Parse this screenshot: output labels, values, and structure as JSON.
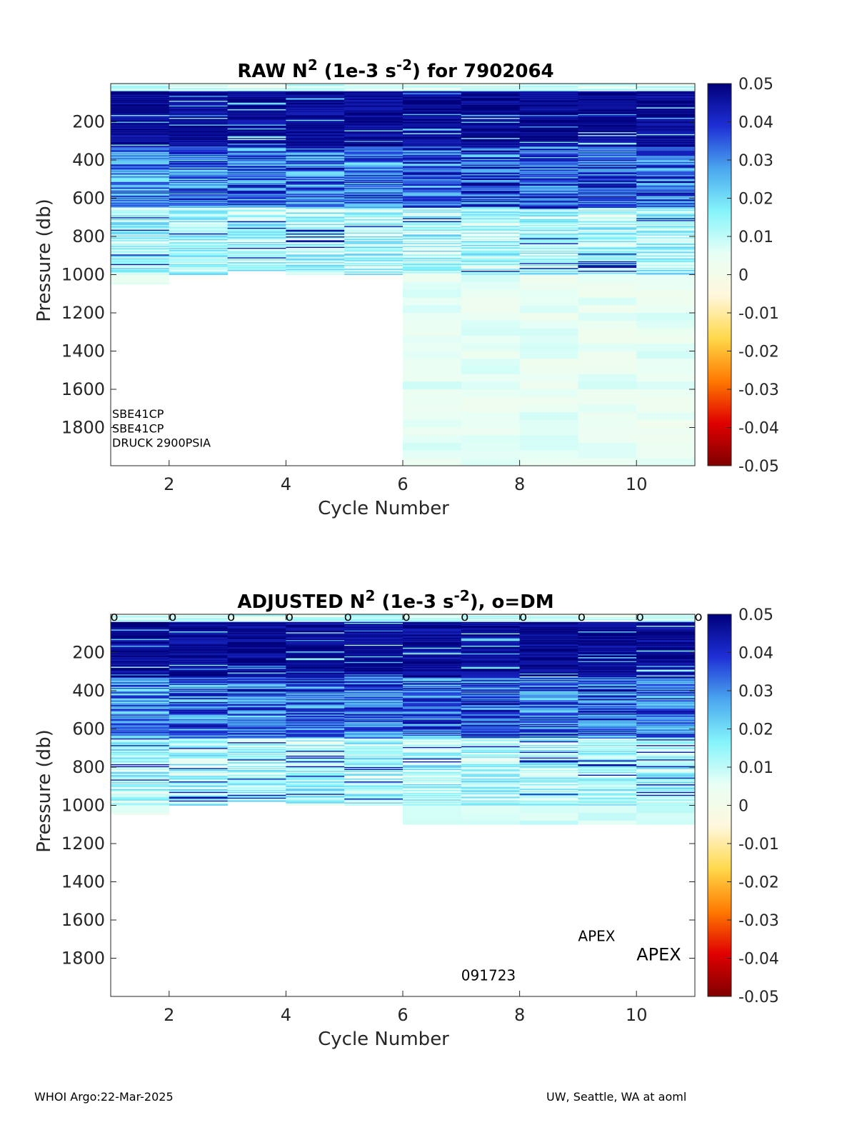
{
  "figure": {
    "footer_left": "WHOI Argo:22-Mar-2025",
    "footer_right": "UW, Seattle, WA at aoml"
  },
  "colormap": {
    "stops": [
      "#7f0000",
      "#e00000",
      "#ff7a00",
      "#ffd84a",
      "#fff7dc",
      "#e8fff6",
      "#84f4fb",
      "#4aa6ee",
      "#1e2fd6",
      "#00007a"
    ],
    "ticks": [
      "0.05",
      "0.04",
      "0.03",
      "0.02",
      "0.01",
      "0",
      "-0.01",
      "-0.02",
      "-0.03",
      "-0.04",
      "-0.05"
    ],
    "clim": [
      -0.05,
      0.05
    ]
  },
  "chart_data": [
    {
      "type": "heatmap",
      "title_main": "RAW N",
      "title_sup": "2",
      "title_mid": " (1e-3 s",
      "title_sup2": "-2",
      "title_end": ") for 7902064",
      "xlabel": "Cycle Number",
      "ylabel": "Pressure (db)",
      "xlim": [
        1,
        11
      ],
      "ylim": [
        2000,
        0
      ],
      "xticks": [
        "2",
        "4",
        "6",
        "8",
        "10"
      ],
      "yticks": [
        "200",
        "400",
        "600",
        "800",
        "1000",
        "1200",
        "1400",
        "1600",
        "1800"
      ],
      "annotations": [
        "SBE41CP",
        "SBE41CP",
        "DRUCK 2900PSIA"
      ],
      "cycles": [
        {
          "cycle": 1,
          "max_pressure": 1050,
          "value_upper": 0.026,
          "value_deep": 0.004
        },
        {
          "cycle": 2,
          "max_pressure": 1000,
          "value_upper": 0.03,
          "value_deep": 0.004
        },
        {
          "cycle": 3,
          "max_pressure": 980,
          "value_upper": 0.03,
          "value_deep": 0.004
        },
        {
          "cycle": 4,
          "max_pressure": 1000,
          "value_upper": 0.03,
          "value_deep": 0.004
        },
        {
          "cycle": 5,
          "max_pressure": 1000,
          "value_upper": 0.03,
          "value_deep": 0.004
        },
        {
          "cycle": 6,
          "max_pressure": 2000,
          "value_upper": 0.03,
          "value_deep": 0.006
        },
        {
          "cycle": 7,
          "max_pressure": 2000,
          "value_upper": 0.032,
          "value_deep": 0.005
        },
        {
          "cycle": 8,
          "max_pressure": 2000,
          "value_upper": 0.03,
          "value_deep": 0.005
        },
        {
          "cycle": 9,
          "max_pressure": 2000,
          "value_upper": 0.032,
          "value_deep": 0.005
        },
        {
          "cycle": 10,
          "max_pressure": 2000,
          "value_upper": 0.03,
          "value_deep": 0.005
        }
      ]
    },
    {
      "type": "heatmap",
      "title_main": "ADJUSTED N",
      "title_sup": "2",
      "title_mid": " (1e-3 s",
      "title_sup2": "-2",
      "title_end": "), o=DM",
      "xlabel": "Cycle Number",
      "ylabel": "Pressure (db)",
      "xlim": [
        1,
        11
      ],
      "ylim": [
        2000,
        0
      ],
      "xticks": [
        "2",
        "4",
        "6",
        "8",
        "10"
      ],
      "yticks": [
        "200",
        "400",
        "600",
        "800",
        "1000",
        "1200",
        "1400",
        "1600",
        "1800"
      ],
      "dm_marker": "o",
      "dm_cycles": [
        1,
        2,
        3,
        4,
        5,
        6,
        7,
        8,
        9,
        10,
        11
      ],
      "annotations": [
        "APEX",
        "APEX",
        "091723"
      ],
      "cycles": [
        {
          "cycle": 1,
          "max_pressure": 1050,
          "value_upper": 0.026,
          "value_deep": 0.004
        },
        {
          "cycle": 2,
          "max_pressure": 1000,
          "value_upper": 0.03,
          "value_deep": 0.004
        },
        {
          "cycle": 3,
          "max_pressure": 980,
          "value_upper": 0.03,
          "value_deep": 0.004
        },
        {
          "cycle": 4,
          "max_pressure": 1000,
          "value_upper": 0.03,
          "value_deep": 0.004
        },
        {
          "cycle": 5,
          "max_pressure": 1000,
          "value_upper": 0.03,
          "value_deep": 0.004
        },
        {
          "cycle": 6,
          "max_pressure": 1100,
          "value_upper": 0.03,
          "value_deep": 0.008
        },
        {
          "cycle": 7,
          "max_pressure": 1100,
          "value_upper": 0.032,
          "value_deep": 0.008
        },
        {
          "cycle": 8,
          "max_pressure": 1100,
          "value_upper": 0.03,
          "value_deep": 0.008
        },
        {
          "cycle": 9,
          "max_pressure": 1100,
          "value_upper": 0.032,
          "value_deep": 0.008
        },
        {
          "cycle": 10,
          "max_pressure": 1100,
          "value_upper": 0.03,
          "value_deep": 0.008
        }
      ]
    }
  ]
}
